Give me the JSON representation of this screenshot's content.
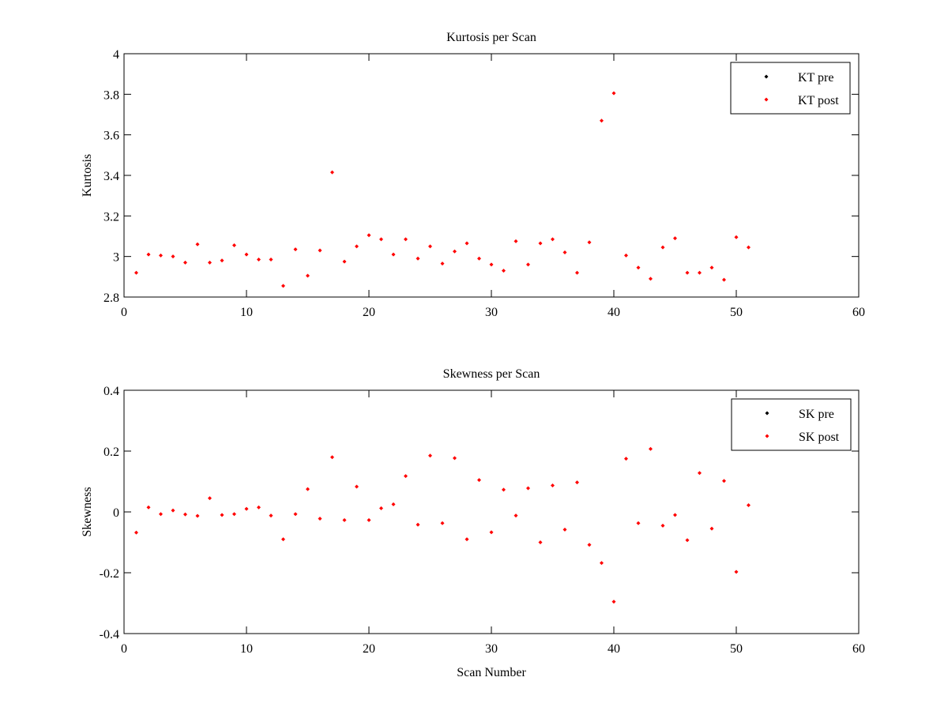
{
  "chart_data": [
    {
      "type": "scatter",
      "title": "Kurtosis per Scan",
      "xlabel": "",
      "ylabel": "Kurtosis",
      "xlim": [
        0,
        60
      ],
      "ylim": [
        2.8,
        4
      ],
      "xticks": [
        0,
        10,
        20,
        30,
        40,
        50,
        60
      ],
      "yticks": [
        2.8,
        3,
        3.2,
        3.4,
        3.6,
        3.8,
        4
      ],
      "ytick_labels": [
        "2.8",
        "3",
        "3.2",
        "3.4",
        "3.6",
        "3.8",
        "4"
      ],
      "grid": false,
      "legend": "top-right",
      "series": [
        {
          "name": "KT pre",
          "color": "#000000",
          "x": [],
          "y": []
        },
        {
          "name": "KT post",
          "color": "#ff0000",
          "x": [
            1,
            2,
            3,
            4,
            5,
            6,
            7,
            8,
            9,
            10,
            11,
            12,
            13,
            14,
            15,
            16,
            17,
            18,
            19,
            20,
            21,
            22,
            23,
            24,
            25,
            26,
            27,
            28,
            29,
            30,
            31,
            32,
            33,
            34,
            35,
            36,
            37,
            38,
            39,
            40,
            41,
            42,
            43,
            44,
            45,
            46,
            47,
            48,
            49,
            50,
            51
          ],
          "y": [
            2.92,
            3.01,
            3.005,
            3.0,
            2.97,
            3.06,
            2.97,
            2.98,
            3.055,
            3.01,
            2.985,
            2.985,
            2.855,
            3.035,
            2.905,
            3.03,
            3.415,
            2.975,
            3.05,
            3.105,
            3.085,
            3.01,
            3.085,
            2.99,
            3.05,
            2.965,
            3.025,
            3.065,
            2.99,
            2.96,
            2.93,
            3.075,
            2.96,
            3.065,
            3.085,
            3.02,
            2.92,
            3.07,
            3.67,
            3.805,
            3.005,
            2.945,
            2.89,
            3.045,
            3.09,
            2.92,
            2.92,
            2.945,
            2.885,
            3.095,
            3.045
          ]
        }
      ]
    },
    {
      "type": "scatter",
      "title": "Skewness per Scan",
      "xlabel": "Scan Number",
      "ylabel": "Skewness",
      "xlim": [
        0,
        60
      ],
      "ylim": [
        -0.4,
        0.4
      ],
      "xticks": [
        0,
        10,
        20,
        30,
        40,
        50,
        60
      ],
      "yticks": [
        -0.4,
        -0.2,
        0,
        0.2,
        0.4
      ],
      "ytick_labels": [
        "-0.4",
        "-0.2",
        "0",
        "0.2",
        "0.4"
      ],
      "grid": false,
      "legend": "top-right",
      "series": [
        {
          "name": "SK pre",
          "color": "#000000",
          "x": [],
          "y": []
        },
        {
          "name": "SK post",
          "color": "#ff0000",
          "x": [
            1,
            2,
            3,
            4,
            5,
            6,
            7,
            8,
            9,
            10,
            11,
            12,
            13,
            14,
            15,
            16,
            17,
            18,
            19,
            20,
            21,
            22,
            23,
            24,
            25,
            26,
            27,
            28,
            29,
            30,
            31,
            32,
            33,
            34,
            35,
            36,
            37,
            38,
            39,
            40,
            41,
            42,
            43,
            44,
            45,
            46,
            47,
            48,
            49,
            50,
            51
          ],
          "y": [
            -0.068,
            0.015,
            -0.007,
            0.005,
            -0.008,
            -0.013,
            0.045,
            -0.01,
            -0.007,
            0.01,
            0.015,
            -0.012,
            -0.09,
            -0.007,
            0.075,
            -0.022,
            0.18,
            -0.027,
            0.083,
            -0.027,
            0.012,
            0.025,
            0.118,
            -0.042,
            0.185,
            -0.037,
            0.177,
            -0.09,
            0.105,
            -0.067,
            0.073,
            -0.012,
            0.078,
            -0.1,
            0.087,
            -0.058,
            0.097,
            -0.108,
            -0.168,
            -0.295,
            0.175,
            -0.037,
            0.207,
            -0.045,
            -0.01,
            -0.093,
            0.128,
            -0.055,
            0.102,
            -0.197,
            0.022
          ]
        }
      ]
    }
  ]
}
